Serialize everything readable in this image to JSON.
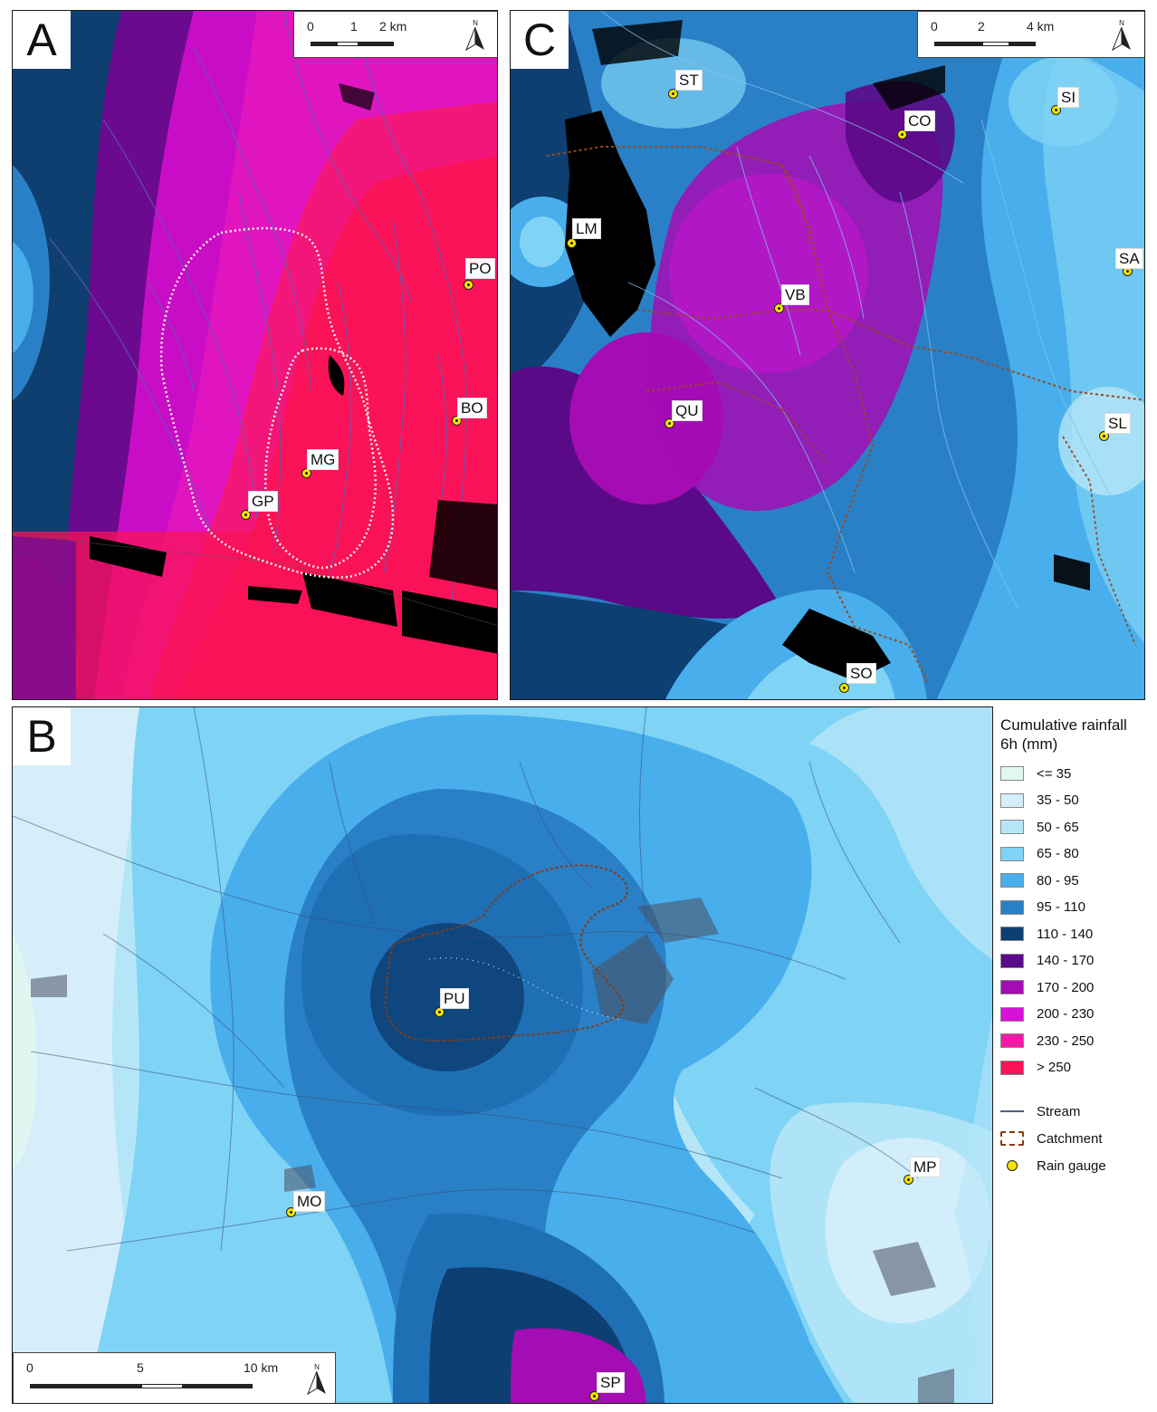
{
  "panels": {
    "A": {
      "letter": "A",
      "scale_ticks": [
        "0",
        "1",
        "2 km"
      ],
      "gauges": [
        "PO",
        "BO",
        "MG",
        "GP"
      ]
    },
    "C": {
      "letter": "C",
      "scale_ticks": [
        "0",
        "2",
        "4 km"
      ],
      "gauges": [
        "ST",
        "SI",
        "CO",
        "LM",
        "SA",
        "VB",
        "QU",
        "SL",
        "SO"
      ]
    },
    "B": {
      "letter": "B",
      "scale_ticks": [
        "0",
        "5",
        "10 km"
      ],
      "gauges": [
        "PU",
        "MO",
        "MP",
        "SP"
      ]
    }
  },
  "north_label": "N",
  "legend": {
    "title": "Cumulative rainfall 6h (mm)",
    "classes": [
      {
        "label": "<= 35",
        "color": "#e2f8ef"
      },
      {
        "label": "35 - 50",
        "color": "#d6eefa"
      },
      {
        "label": "50 - 65",
        "color": "#b5e6f8"
      },
      {
        "label": "65 - 80",
        "color": "#7fd3f5"
      },
      {
        "label": "80 - 95",
        "color": "#48aeec"
      },
      {
        "label": "95 - 110",
        "color": "#2a80c6"
      },
      {
        "label": "110 - 140",
        "color": "#0d3f73"
      },
      {
        "label": "140 - 170",
        "color": "#5a0a86"
      },
      {
        "label": "170 - 200",
        "color": "#a40cb4"
      },
      {
        "label": "200 - 230",
        "color": "#d711d8"
      },
      {
        "label": "230 - 250",
        "color": "#f11aa6"
      },
      {
        "label": "> 250",
        "color": "#fa1358"
      }
    ],
    "symbols": {
      "stream": "Stream",
      "catchment": "Catchment",
      "rain_gauge": "Rain gauge"
    }
  }
}
